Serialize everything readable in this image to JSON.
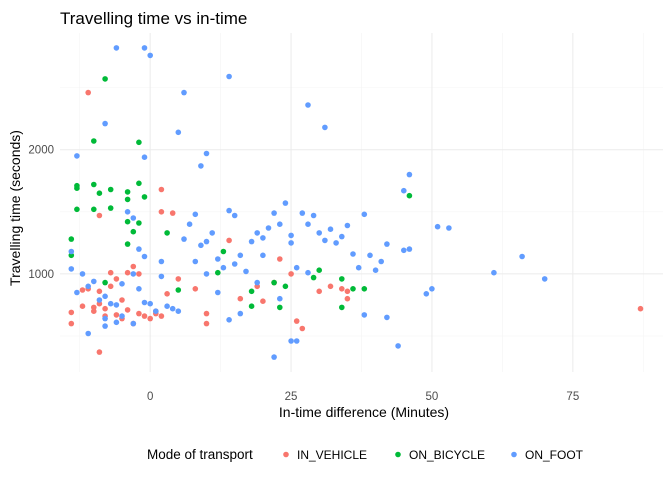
{
  "chart_data": {
    "type": "scatter",
    "title": "Travelling time vs in-time",
    "xlabel": "In-time difference (Minutes)",
    "ylabel": "Travelling time (seconds)",
    "xlim": [
      -16,
      91
    ],
    "ylim": [
      210,
      2940
    ],
    "x_ticks": [
      0,
      25,
      50,
      75
    ],
    "y_ticks": [
      1000,
      2000
    ],
    "grid": true,
    "legend": {
      "title": "Mode of transport",
      "position": "bottom"
    },
    "series": [
      {
        "name": "IN_VEHICLE",
        "color": "#F8766D",
        "points": [
          [
            -11,
            2460
          ],
          [
            2,
            1680
          ],
          [
            -9,
            1470
          ],
          [
            2,
            1500
          ],
          [
            4,
            1490
          ],
          [
            14,
            1270
          ],
          [
            23,
            1120
          ],
          [
            34,
            880
          ],
          [
            35,
            800
          ],
          [
            -14,
            690
          ],
          [
            -14,
            600
          ],
          [
            -12,
            740
          ],
          [
            -12,
            870
          ],
          [
            -11,
            880
          ],
          [
            -10,
            730
          ],
          [
            -10,
            700
          ],
          [
            -9,
            760
          ],
          [
            -9,
            860
          ],
          [
            -8,
            720
          ],
          [
            -8,
            660
          ],
          [
            -7,
            1010
          ],
          [
            -7,
            900
          ],
          [
            -6,
            960
          ],
          [
            -6,
            670
          ],
          [
            -5,
            790
          ],
          [
            -5,
            640
          ],
          [
            -4,
            1010
          ],
          [
            -4,
            710
          ],
          [
            -3,
            600
          ],
          [
            -3,
            1060
          ],
          [
            -2,
            1000
          ],
          [
            -2,
            680
          ],
          [
            -1,
            660
          ],
          [
            0,
            640
          ],
          [
            1,
            700
          ],
          [
            1,
            680
          ],
          [
            2,
            660
          ],
          [
            3,
            840
          ],
          [
            -9,
            370
          ],
          [
            5,
            960
          ],
          [
            8,
            880
          ],
          [
            10,
            680
          ],
          [
            10,
            600
          ],
          [
            16,
            800
          ],
          [
            19,
            900
          ],
          [
            20,
            780
          ],
          [
            22,
            930
          ],
          [
            25,
            1000
          ],
          [
            26,
            620
          ],
          [
            27,
            560
          ],
          [
            30,
            860
          ],
          [
            32,
            900
          ],
          [
            35,
            860
          ],
          [
            87,
            720
          ]
        ]
      },
      {
        "name": "ON_BICYCLE",
        "color": "#00BA38",
        "points": [
          [
            -8,
            2570
          ],
          [
            -10,
            2070
          ],
          [
            -2,
            2060
          ],
          [
            -13,
            1710
          ],
          [
            -13,
            1690
          ],
          [
            -10,
            1720
          ],
          [
            -9,
            1650
          ],
          [
            -7,
            1680
          ],
          [
            -4,
            1600
          ],
          [
            -4,
            1660
          ],
          [
            -2,
            1730
          ],
          [
            -1,
            1620
          ],
          [
            -13,
            1520
          ],
          [
            -10,
            1520
          ],
          [
            -7,
            1530
          ],
          [
            -4,
            1420
          ],
          [
            -2,
            1410
          ],
          [
            -14,
            1280
          ],
          [
            -14,
            1150
          ],
          [
            -3,
            1340
          ],
          [
            -4,
            1240
          ],
          [
            -8,
            930
          ],
          [
            3,
            1330
          ],
          [
            5,
            870
          ],
          [
            13,
            1180
          ],
          [
            12,
            1010
          ],
          [
            18,
            860
          ],
          [
            18,
            740
          ],
          [
            22,
            930
          ],
          [
            23,
            730
          ],
          [
            24,
            900
          ],
          [
            29,
            970
          ],
          [
            30,
            1030
          ],
          [
            34,
            960
          ],
          [
            34,
            730
          ],
          [
            36,
            880
          ],
          [
            38,
            880
          ],
          [
            46,
            1630
          ]
        ]
      },
      {
        "name": "ON_FOOT",
        "color": "#619CFF",
        "points": [
          [
            -6,
            2820
          ],
          [
            -1,
            2820
          ],
          [
            0,
            2760
          ],
          [
            14,
            2590
          ],
          [
            6,
            2460
          ],
          [
            28,
            2360
          ],
          [
            31,
            2180
          ],
          [
            -8,
            2210
          ],
          [
            5,
            2140
          ],
          [
            -13,
            1950
          ],
          [
            -1,
            1940
          ],
          [
            10,
            1970
          ],
          [
            9,
            1870
          ],
          [
            46,
            1800
          ],
          [
            45,
            1670
          ],
          [
            -14,
            1180
          ],
          [
            -14,
            1040
          ],
          [
            -12,
            1000
          ],
          [
            -13,
            850
          ],
          [
            -11,
            900
          ],
          [
            -10,
            940
          ],
          [
            -9,
            790
          ],
          [
            -8,
            820
          ],
          [
            -8,
            640
          ],
          [
            -7,
            760
          ],
          [
            -6,
            750
          ],
          [
            -6,
            610
          ],
          [
            -5,
            660
          ],
          [
            -5,
            920
          ],
          [
            -4,
            1500
          ],
          [
            -3,
            1450
          ],
          [
            -3,
            1000
          ],
          [
            -2,
            880
          ],
          [
            -2,
            1200
          ],
          [
            -1,
            770
          ],
          [
            0,
            760
          ],
          [
            1,
            700
          ],
          [
            2,
            980
          ],
          [
            3,
            740
          ],
          [
            4,
            720
          ],
          [
            5,
            700
          ],
          [
            6,
            1280
          ],
          [
            7,
            1400
          ],
          [
            8,
            1480
          ],
          [
            8,
            1100
          ],
          [
            9,
            1230
          ],
          [
            10,
            1000
          ],
          [
            11,
            1330
          ],
          [
            12,
            1120
          ],
          [
            13,
            1050
          ],
          [
            14,
            1510
          ],
          [
            15,
            1470
          ],
          [
            15,
            1080
          ],
          [
            16,
            1150
          ],
          [
            17,
            1020
          ],
          [
            18,
            1260
          ],
          [
            19,
            1330
          ],
          [
            19,
            930
          ],
          [
            20,
            1150
          ],
          [
            21,
            1370
          ],
          [
            22,
            1490
          ],
          [
            23,
            1400
          ],
          [
            24,
            1570
          ],
          [
            25,
            1310
          ],
          [
            25,
            1250
          ],
          [
            26,
            1050
          ],
          [
            27,
            1490
          ],
          [
            28,
            1400
          ],
          [
            28,
            1010
          ],
          [
            29,
            1470
          ],
          [
            30,
            1330
          ],
          [
            31,
            1270
          ],
          [
            32,
            1360
          ],
          [
            33,
            1250
          ],
          [
            34,
            1300
          ],
          [
            35,
            1390
          ],
          [
            36,
            1160
          ],
          [
            37,
            1050
          ],
          [
            38,
            1480
          ],
          [
            39,
            1150
          ],
          [
            40,
            1030
          ],
          [
            41,
            1100
          ],
          [
            42,
            1240
          ],
          [
            45,
            1190
          ],
          [
            46,
            1200
          ],
          [
            49,
            840
          ],
          [
            50,
            880
          ],
          [
            51,
            1380
          ],
          [
            53,
            1370
          ],
          [
            61,
            1010
          ],
          [
            66,
            1140
          ],
          [
            70,
            960
          ],
          [
            22,
            330
          ],
          [
            25,
            460
          ],
          [
            26,
            460
          ],
          [
            44,
            420
          ],
          [
            42,
            650
          ],
          [
            38,
            670
          ],
          [
            14,
            630
          ],
          [
            16,
            680
          ],
          [
            23,
            800
          ],
          [
            -3,
            600
          ],
          [
            -11,
            520
          ],
          [
            -8,
            580
          ],
          [
            12,
            850
          ],
          [
            10,
            1260
          ],
          [
            -1,
            1140
          ],
          [
            2,
            1100
          ],
          [
            20,
            1290
          ]
        ]
      }
    ]
  }
}
